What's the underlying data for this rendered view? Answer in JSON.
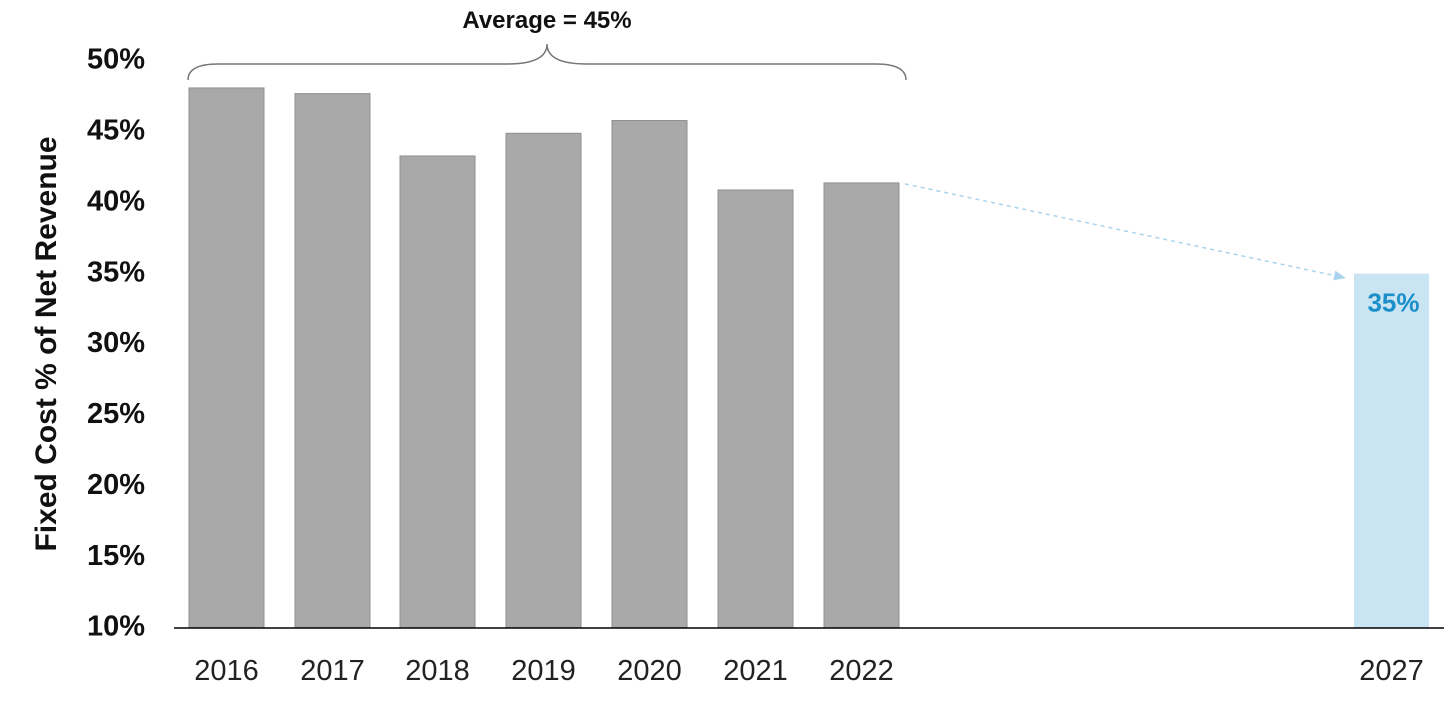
{
  "chart_data": {
    "type": "bar",
    "categories": [
      "2016",
      "2017",
      "2018",
      "2019",
      "2020",
      "2021",
      "2022",
      "2027"
    ],
    "values": [
      48.1,
      47.7,
      43.3,
      44.9,
      45.8,
      40.9,
      41.4,
      35
    ],
    "ylabel": "Fixed Cost % of Net Revenue",
    "xlabel": "",
    "ylim": [
      10,
      50
    ],
    "yticks": [
      10,
      15,
      20,
      25,
      30,
      35,
      40,
      45,
      50
    ],
    "ytick_labels": [
      "10%",
      "15%",
      "20%",
      "25%",
      "30%",
      "35%",
      "40%",
      "45%",
      "50%"
    ],
    "grid": false,
    "colors": {
      "historical": "#a9a9a9",
      "historical_edge": "#8f8f8f",
      "target": "#c9e4f2",
      "target_label": "#1a8fc9",
      "arrow": "#a9d4ee",
      "axis": "#000000",
      "brace": "#777777"
    },
    "annotations": {
      "average_label": "Average = 45%",
      "target_label": "35%"
    }
  }
}
